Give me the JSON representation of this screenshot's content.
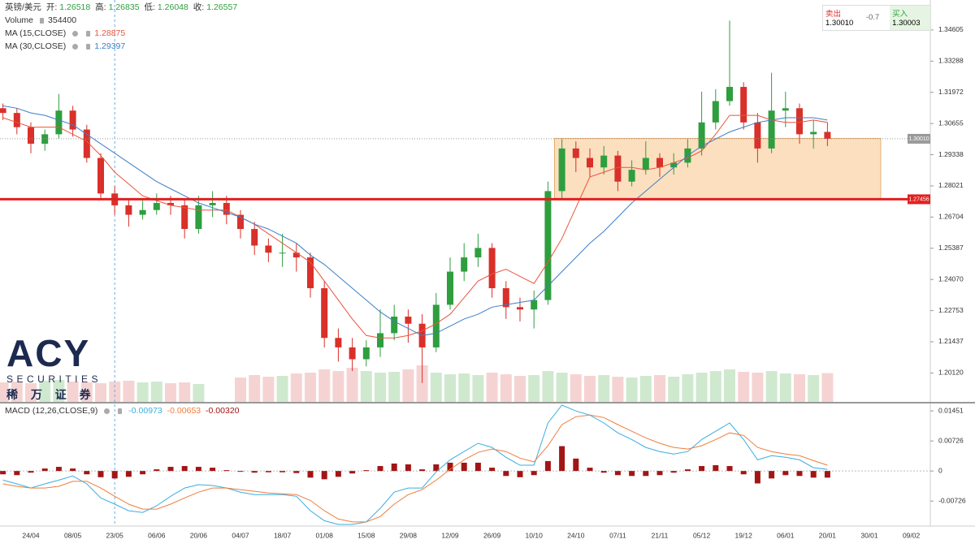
{
  "chart_data": [
    {
      "type": "candlestick",
      "header": {
        "symbol": "英镑/美元",
        "fields": [
          {
            "label": "开:",
            "value": 1.26518
          },
          {
            "label": "高:",
            "value": 1.26835
          },
          {
            "label": "低:",
            "value": 1.26048
          },
          {
            "label": "收:",
            "value": 1.26557
          }
        ]
      },
      "categories": [
        null,
        null,
        "24/04",
        null,
        null,
        "08/05",
        null,
        null,
        "23/05",
        null,
        null,
        "06/06",
        null,
        null,
        "20/06",
        null,
        null,
        "04/07",
        null,
        null,
        "18/07",
        null,
        null,
        "01/08",
        null,
        null,
        "15/08",
        null,
        null,
        "29/08",
        null,
        null,
        "12/09",
        null,
        null,
        "26/09",
        null,
        null,
        "10/10",
        null,
        null,
        "24/10",
        null,
        null,
        "07/11",
        null,
        null,
        "21/11",
        null,
        null,
        "05/12",
        null,
        null,
        "19/12",
        null,
        null,
        "06/01",
        null,
        null,
        "20/01",
        null,
        null,
        "30/01",
        null,
        null,
        "09/02"
      ],
      "open": [
        1.313,
        1.311,
        1.305,
        1.298,
        1.302,
        1.312,
        1.304,
        1.292,
        1.277,
        1.272,
        1.268,
        1.27,
        1.273,
        1.272,
        1.262,
        1.272,
        1.273,
        1.268,
        1.262,
        1.255,
        1.252,
        1.252,
        1.25,
        1.237,
        1.216,
        1.212,
        1.207,
        1.212,
        1.218,
        1.225,
        1.222,
        1.212,
        1.23,
        1.244,
        1.25,
        1.254,
        1.237,
        1.229,
        1.228,
        1.232,
        1.278,
        1.296,
        1.292,
        1.288,
        1.293,
        1.282,
        1.287,
        1.292,
        1.288,
        1.29,
        1.296,
        1.307,
        1.316,
        1.322,
        1.307,
        1.296,
        1.312,
        1.313,
        1.302,
        1.303,
        null,
        null,
        null,
        null,
        null,
        null
      ],
      "high": [
        1.315,
        1.313,
        1.307,
        1.304,
        1.319,
        1.314,
        1.306,
        1.294,
        1.28,
        1.275,
        1.274,
        1.277,
        1.276,
        1.275,
        1.276,
        1.278,
        1.276,
        1.27,
        1.265,
        1.258,
        1.26,
        1.256,
        1.252,
        1.24,
        1.22,
        1.216,
        1.215,
        1.228,
        1.23,
        1.228,
        1.226,
        1.235,
        1.25,
        1.256,
        1.26,
        1.256,
        1.24,
        1.233,
        1.236,
        1.282,
        1.3,
        1.299,
        1.296,
        1.297,
        1.295,
        1.291,
        1.299,
        1.294,
        1.294,
        1.3,
        1.32,
        1.321,
        1.35,
        1.324,
        1.311,
        1.328,
        1.32,
        1.315,
        1.308,
        1.307,
        null,
        null,
        null,
        null,
        null,
        null
      ],
      "low": [
        1.308,
        1.302,
        1.294,
        1.295,
        1.3,
        1.301,
        1.29,
        1.274,
        1.268,
        1.263,
        1.266,
        1.268,
        1.268,
        1.258,
        1.26,
        1.267,
        1.264,
        1.258,
        1.251,
        1.248,
        1.246,
        1.244,
        1.233,
        1.212,
        1.206,
        1.202,
        1.204,
        1.208,
        1.215,
        1.214,
        1.197,
        1.21,
        1.228,
        1.24,
        1.246,
        1.233,
        1.224,
        1.223,
        1.22,
        1.23,
        1.275,
        1.286,
        1.284,
        1.285,
        1.278,
        1.28,
        1.285,
        1.284,
        1.285,
        1.288,
        1.293,
        1.304,
        1.314,
        1.304,
        1.29,
        1.294,
        1.305,
        1.298,
        1.296,
        1.297,
        null,
        null,
        null,
        null,
        null,
        null
      ],
      "close": [
        1.311,
        1.305,
        1.298,
        1.302,
        1.312,
        1.304,
        1.292,
        1.277,
        1.272,
        1.268,
        1.27,
        1.273,
        1.272,
        1.262,
        1.272,
        1.273,
        1.268,
        1.262,
        1.255,
        1.252,
        1.252,
        1.25,
        1.237,
        1.216,
        1.212,
        1.207,
        1.212,
        1.218,
        1.225,
        1.222,
        1.212,
        1.23,
        1.244,
        1.25,
        1.254,
        1.237,
        1.229,
        1.228,
        1.232,
        1.278,
        1.296,
        1.292,
        1.288,
        1.293,
        1.282,
        1.287,
        1.292,
        1.288,
        1.29,
        1.296,
        1.307,
        1.316,
        1.322,
        1.307,
        1.296,
        1.312,
        1.313,
        1.302,
        1.303,
        1.3001,
        null,
        null,
        null,
        null,
        null,
        null
      ],
      "up_color": "#2e9e3e",
      "down_color": "#d9302a",
      "series": [
        {
          "name": "MA (15,CLOSE)",
          "color": "#e8553d",
          "last_value": 1.28875,
          "values": [
            1.309,
            1.307,
            1.305,
            1.305,
            1.305,
            1.302,
            1.299,
            1.293,
            1.286,
            1.281,
            1.276,
            1.274,
            1.272,
            1.271,
            1.27,
            1.27,
            1.27,
            1.267,
            1.264,
            1.26,
            1.256,
            1.252,
            1.248,
            1.24,
            1.232,
            1.224,
            1.217,
            1.216,
            1.216,
            1.217,
            1.219,
            1.222,
            1.226,
            1.233,
            1.24,
            1.243,
            1.245,
            1.242,
            1.239,
            1.248,
            1.258,
            1.271,
            1.284,
            1.286,
            1.288,
            1.288,
            1.287,
            1.288,
            1.29,
            1.292,
            1.295,
            1.302,
            1.31,
            1.31,
            1.31,
            1.308,
            1.307,
            1.307,
            1.308,
            1.307,
            null,
            null,
            null,
            null,
            null,
            null
          ]
        },
        {
          "name": "MA (30,CLOSE)",
          "color": "#3d7fc4",
          "last_value": 1.29397,
          "values": [
            1.314,
            1.313,
            1.311,
            1.31,
            1.308,
            1.306,
            1.302,
            1.298,
            1.294,
            1.29,
            1.286,
            1.282,
            1.279,
            1.276,
            1.273,
            1.271,
            1.269,
            1.267,
            1.264,
            1.262,
            1.259,
            1.256,
            1.251,
            1.247,
            1.242,
            1.237,
            1.232,
            1.227,
            1.223,
            1.22,
            1.217,
            1.218,
            1.221,
            1.224,
            1.226,
            1.229,
            1.23,
            1.231,
            1.232,
            1.238,
            1.244,
            1.25,
            1.256,
            1.261,
            1.267,
            1.273,
            1.278,
            1.283,
            1.288,
            1.293,
            1.297,
            1.3,
            1.303,
            1.305,
            1.307,
            1.308,
            1.309,
            1.309,
            1.309,
            1.308,
            null,
            null,
            null,
            null,
            null,
            null
          ]
        }
      ],
      "volume": {
        "name": "Volume",
        "last_value": 354400,
        "ylim": [
          0,
          1200000
        ],
        "values": [
          240000,
          250000,
          230000,
          260000,
          270000,
          250000,
          240000,
          230000,
          250000,
          260000,
          240000,
          250000,
          230000,
          240000,
          220000,
          null,
          null,
          300000,
          330000,
          310000,
          320000,
          350000,
          360000,
          400000,
          380000,
          420000,
          380000,
          360000,
          370000,
          400000,
          450000,
          360000,
          340000,
          350000,
          330000,
          360000,
          340000,
          320000,
          330000,
          380000,
          360000,
          340000,
          320000,
          330000,
          310000,
          300000,
          320000,
          330000,
          310000,
          340000,
          360000,
          380000,
          400000,
          370000,
          360000,
          380000,
          350000,
          340000,
          330000,
          354400,
          null,
          null,
          null,
          null,
          null,
          null
        ]
      },
      "ylim": [
        1.189,
        1.3587
      ],
      "yticks": [
        1.34605,
        1.33288,
        1.31972,
        1.30655,
        1.29338,
        1.28021,
        1.26704,
        1.25387,
        {
          "value": 1.2407,
          "label": "1.24070"
        },
        1.22753,
        1.21437,
        {
          "value": 1.2012,
          "label": "1.20120"
        }
      ],
      "lines": [
        {
          "value": 1.3001,
          "label": "1.30010",
          "color": "#9a9a9a"
        },
        {
          "value": 1.27456,
          "color": "#e02020"
        }
      ],
      "zone": {
        "ylim": [
          1.27456,
          1.3003
        ],
        "color": "#f8c48a"
      },
      "trade": {
        "sell_label": "卖出",
        "sell": {
          "value": 1.3001,
          "label": "1.30010"
        },
        "spread": -0.7,
        "buy_label": "买入",
        "buy": 1.30003
      },
      "logo": {
        "mark": "ACY",
        "name": "SECURITIES",
        "chinese": "稀 万 证 券"
      }
    },
    {
      "type": "macd",
      "title": "MACD (12,26,CLOSE,9)",
      "legend_values": [
        -0.00973,
        -0.00653,
        {
          "value": -0.0032,
          "label": "-0.00320"
        }
      ],
      "series": [
        {
          "name": "MACD",
          "color": "#3aaee0",
          "values": [
            -0.0022,
            -0.0031,
            -0.0041,
            -0.0031,
            -0.0022,
            -0.0012,
            -0.0031,
            -0.0065,
            -0.008,
            -0.0096,
            -0.01,
            -0.0084,
            -0.0061,
            -0.0041,
            -0.0033,
            -0.0035,
            -0.0041,
            -0.0051,
            -0.0057,
            -0.0057,
            -0.0057,
            -0.0061,
            -0.0096,
            -0.012,
            -0.0129,
            -0.0129,
            -0.0123,
            -0.009,
            -0.0051,
            -0.0041,
            -0.0041,
            -0.0002,
            0.0027,
            0.0047,
            0.0067,
            0.0057,
            0.0033,
            0.0014,
            0.0014,
            0.0116,
            0.0159,
            0.0145,
            0.0135,
            0.0116,
            0.0092,
            0.0076,
            0.0057,
            0.0047,
            0.0041,
            0.0047,
            0.0076,
            0.0096,
            0.0116,
            0.0076,
            0.0027,
            0.0037,
            0.0033,
            0.0027,
            0.0008,
            0.0004,
            null,
            null,
            null,
            null,
            null,
            null
          ]
        },
        {
          "name": "Signal",
          "color": "#f07d3a",
          "values": [
            -0.0031,
            -0.0037,
            -0.0041,
            -0.0041,
            -0.0037,
            -0.0025,
            -0.0025,
            -0.0041,
            -0.0061,
            -0.008,
            -0.0092,
            -0.0092,
            -0.008,
            -0.0065,
            -0.0051,
            -0.0041,
            -0.0041,
            -0.0045,
            -0.0049,
            -0.0053,
            -0.0055,
            -0.0057,
            -0.0071,
            -0.0096,
            -0.0116,
            -0.0123,
            -0.0123,
            -0.011,
            -0.008,
            -0.0057,
            -0.0045,
            -0.0022,
            0.0004,
            0.0027,
            0.0045,
            0.0053,
            0.0047,
            0.0031,
            0.0022,
            0.0061,
            0.0112,
            0.0131,
            0.0135,
            0.0129,
            0.0112,
            0.0096,
            0.008,
            0.0067,
            0.0057,
            0.0053,
            0.0061,
            0.0076,
            0.0092,
            0.0086,
            0.0057,
            0.0047,
            0.0041,
            0.0037,
            0.0025,
            0.0014,
            null,
            null,
            null,
            null,
            null,
            null
          ]
        },
        {
          "name": "Histogram",
          "color": "#a31515",
          "values": [
            -0.0008,
            -0.001,
            -0.0004,
            0.0006,
            0.001,
            0.0006,
            -0.0008,
            -0.0015,
            -0.0018,
            -0.0014,
            -0.0008,
            0.0004,
            0.001,
            0.0012,
            0.001,
            0.0008,
            0.0002,
            -0.0002,
            -0.0004,
            -0.0003,
            -0.0003,
            -0.0005,
            -0.0016,
            -0.002,
            -0.0014,
            -0.0006,
            0.0002,
            0.0012,
            0.0018,
            0.0016,
            0.0004,
            0.0016,
            0.002,
            0.002,
            0.002,
            0.0008,
            -0.0012,
            -0.0015,
            -0.001,
            0.0024,
            0.006,
            0.003,
            0.0008,
            -0.0004,
            -0.001,
            -0.0012,
            -0.0012,
            -0.001,
            -0.0004,
            0.0004,
            0.0012,
            0.0014,
            0.0012,
            -0.0008,
            -0.003,
            -0.0018,
            -0.001,
            -0.0012,
            -0.0016,
            -0.0016,
            null,
            null,
            null,
            null,
            null,
            null
          ]
        }
      ],
      "ylim": [
        -0.0133,
        0.0163
      ],
      "yticks": [
        0.01451,
        0.00726,
        0,
        -0.00726
      ]
    }
  ]
}
